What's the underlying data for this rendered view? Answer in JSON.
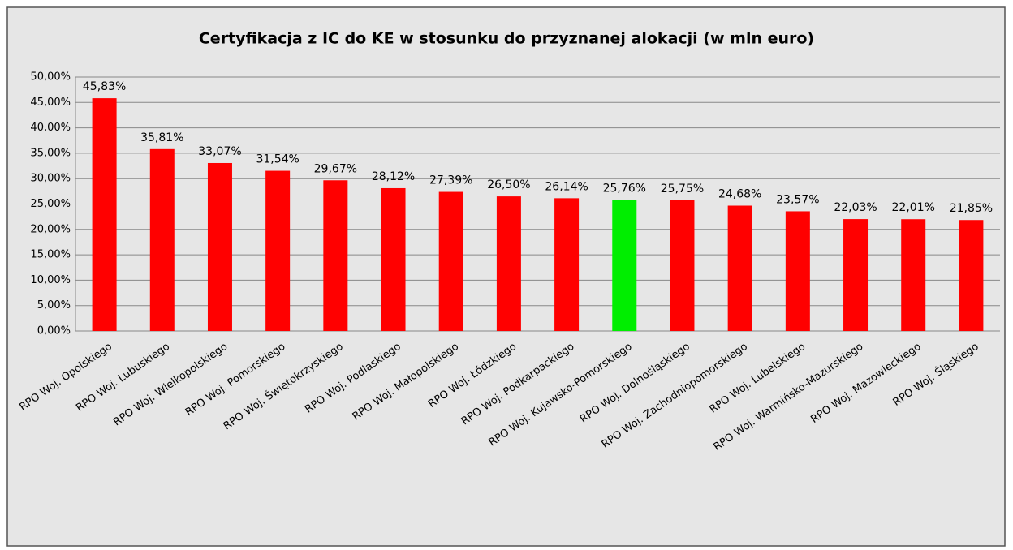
{
  "chart_data": {
    "type": "bar",
    "title": "Certyfikacja z IC do KE w stosunku do przyznanej alokacji (w mln euro)",
    "categories": [
      "RPO Woj. Opolskiego",
      "RPO Woj. Lubuskiego",
      "RPO Woj. Wielkopolskiego",
      "RPO Woj. Pomorskiego",
      "RPO Woj. Świętokrzyskiego",
      "RPO Woj. Podlaskiego",
      "RPO Woj. Małopolskiego",
      "RPO Woj. Łódzkiego",
      "RPO Woj. Podkarpackiego",
      "RPO Woj. Kujawsko-Pomorskiego",
      "RPO Woj. Dolnośląskiego",
      "RPO Woj. Zachodniopomorskiego",
      "RPO Woj. Lubelskiego",
      "RPO Woj. Warmińsko-Mazurskiego",
      "RPO Woj. Mazowieckiego",
      "RPO Woj. Śląskiego"
    ],
    "values": [
      45.83,
      35.81,
      33.07,
      31.54,
      29.67,
      28.12,
      27.39,
      26.5,
      26.14,
      25.76,
      25.75,
      24.68,
      23.57,
      22.03,
      22.01,
      21.85
    ],
    "value_labels": [
      "45,83%",
      "35,81%",
      "33,07%",
      "31,54%",
      "29,67%",
      "28,12%",
      "27,39%",
      "26,50%",
      "26,14%",
      "25,76%",
      "25,75%",
      "24,68%",
      "23,57%",
      "22,03%",
      "22,01%",
      "21,85%"
    ],
    "colors": [
      "#ff0000",
      "#ff0000",
      "#ff0000",
      "#ff0000",
      "#ff0000",
      "#ff0000",
      "#ff0000",
      "#ff0000",
      "#ff0000",
      "#00ee00",
      "#ff0000",
      "#ff0000",
      "#ff0000",
      "#ff0000",
      "#ff0000",
      "#ff0000"
    ],
    "ylim": [
      0,
      50
    ],
    "yticks": [
      {
        "value": 0,
        "label": "0,00%"
      },
      {
        "value": 5,
        "label": "5,00%"
      },
      {
        "value": 10,
        "label": "10,00%"
      },
      {
        "value": 15,
        "label": "15,00%"
      },
      {
        "value": 20,
        "label": "20,00%"
      },
      {
        "value": 25,
        "label": "25,00%"
      },
      {
        "value": 30,
        "label": "30,00%"
      },
      {
        "value": 35,
        "label": "35,00%"
      },
      {
        "value": 40,
        "label": "40,00%"
      },
      {
        "value": 45,
        "label": "45,00%"
      },
      {
        "value": 50,
        "label": "50,00%"
      }
    ],
    "grid": true
  }
}
